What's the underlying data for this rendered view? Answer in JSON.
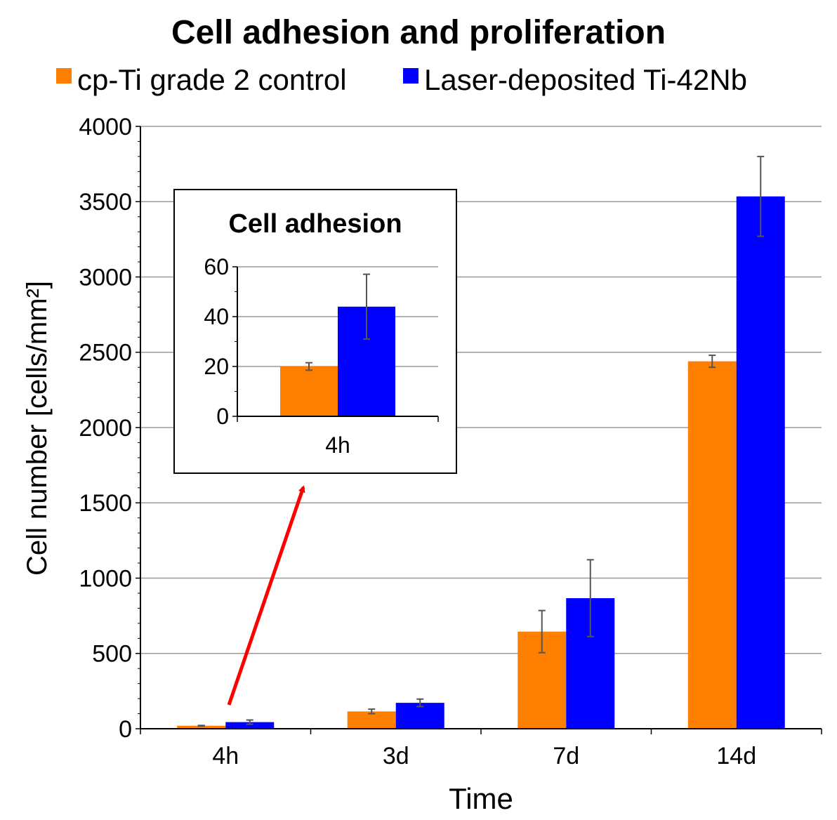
{
  "chart_data": [
    {
      "type": "bar",
      "title": "Cell adhesion and proliferation",
      "xlabel": "Time",
      "ylabel": "Cell number [cells/mm²]",
      "ylim": [
        0,
        4000
      ],
      "yticks": [
        0,
        500,
        1000,
        1500,
        2000,
        2500,
        3000,
        3500,
        4000
      ],
      "grid": true,
      "legend_position": "top",
      "categories": [
        "4h",
        "3d",
        "7d",
        "14d"
      ],
      "series": [
        {
          "name": "cp-Ti grade 2 control",
          "color": "#FF8000",
          "values": [
            20,
            115,
            645,
            2440
          ],
          "errors": [
            2,
            15,
            140,
            40
          ]
        },
        {
          "name": "Laser-deposited Ti-42Nb",
          "color": "#0000FF",
          "values": [
            44,
            172,
            867,
            3535
          ],
          "errors": [
            14,
            25,
            255,
            265
          ]
        }
      ]
    },
    {
      "type": "bar",
      "title": "Cell adhesion",
      "inset": true,
      "ylim": [
        0,
        60
      ],
      "yticks": [
        0,
        20,
        40,
        60
      ],
      "grid": true,
      "categories": [
        "4h"
      ],
      "series": [
        {
          "name": "cp-Ti grade 2 control",
          "color": "#FF8000",
          "values": [
            20
          ],
          "errors": [
            1.5
          ]
        },
        {
          "name": "Laser-deposited Ti-42Nb",
          "color": "#0000FF",
          "values": [
            44
          ],
          "errors": [
            13
          ]
        }
      ]
    }
  ],
  "annotation": {
    "type": "arrow",
    "color": "#FF0000",
    "description": "arrow from 4h bars to inset"
  }
}
